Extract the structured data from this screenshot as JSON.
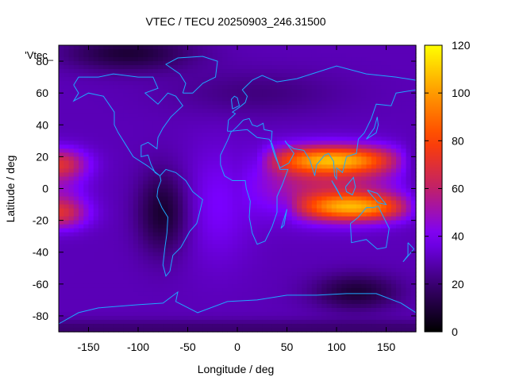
{
  "title": "VTEC / TECU 20250903_246.31500",
  "series_label": "'Vtec_",
  "chart_data": {
    "type": "heatmap",
    "title": "VTEC / TECU 20250903_246.31500",
    "xlabel": "Longitude / deg",
    "ylabel": "Latitude / deg",
    "xlim": [
      -180,
      180
    ],
    "ylim": [
      -90,
      90
    ],
    "x_ticks": [
      -150,
      -100,
      -50,
      0,
      50,
      100,
      150
    ],
    "y_ticks": [
      -80,
      -60,
      -40,
      -20,
      0,
      20,
      40,
      60,
      80
    ],
    "colorbar": {
      "min": 0,
      "max": 120,
      "ticks": [
        0,
        20,
        40,
        60,
        80,
        100,
        120
      ],
      "colormap": [
        "#000000",
        "#3a0070",
        "#7a00ff",
        "#c0206a",
        "#ff4000",
        "#ff9a00",
        "#ffff00"
      ]
    },
    "features": [
      {
        "label": "equatorial anomaly crest north",
        "lon_range": [
          30,
          170
        ],
        "lat": 18,
        "vtec": 95
      },
      {
        "label": "equatorial anomaly crest south",
        "lon_range": [
          60,
          180
        ],
        "lat": -12,
        "vtec": 95
      },
      {
        "label": "evening crest Pacific north",
        "lon_range": [
          -180,
          -140
        ],
        "lat": 15,
        "vtec": 70
      },
      {
        "label": "evening crest Pacific south",
        "lon_range": [
          -180,
          -140
        ],
        "lat": -15,
        "vtec": 70
      },
      {
        "label": "night minimum South America",
        "lon": -75,
        "lat": -15,
        "vtec": 10
      },
      {
        "label": "minimum Antarctic Pacific sector",
        "lon": 120,
        "lat": -65,
        "vtec": 8
      },
      {
        "label": "minimum Arctic",
        "lon": -100,
        "lat": 85,
        "vtec": 10
      }
    ],
    "grid": false,
    "legend": "none",
    "background_level": 30
  }
}
